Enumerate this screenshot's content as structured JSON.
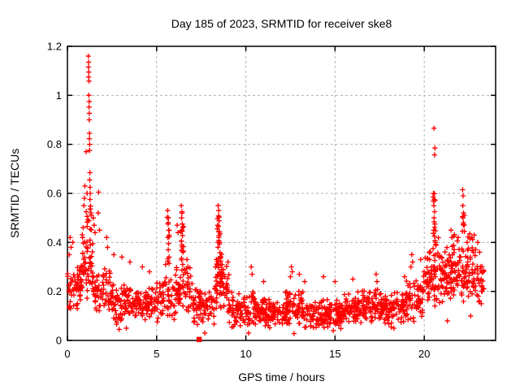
{
  "title": "Day 185 of 2023, SRMTID for receiver ske8",
  "chart_data": {
    "type": "scatter",
    "title": "Day 185 of 2023, SRMTID for receiver ske8",
    "xlabel": "GPS time / hours",
    "ylabel": "SRMTID / TECUs",
    "xlim": [
      0,
      24
    ],
    "ylim": [
      0,
      1.2
    ],
    "xticks": [
      0,
      5,
      10,
      15,
      20
    ],
    "yticks": [
      0,
      0.2,
      0.4,
      0.6,
      0.8,
      1,
      1.2
    ],
    "grid": true,
    "legend": "none",
    "marker": "plus",
    "marker_color": "#ff0000",
    "grid_color": "#b3b3b3",
    "axis_color": "#000000",
    "background_color": "#ffffff",
    "seed": 1185,
    "points": [
      [
        1.17,
        1.16
      ],
      [
        1.19,
        1.135
      ],
      [
        1.18,
        1.115
      ],
      [
        1.2,
        1.095
      ],
      [
        1.19,
        1.075
      ],
      [
        1.21,
        1.058
      ],
      [
        1.2,
        1.0
      ],
      [
        1.22,
        0.975
      ],
      [
        1.21,
        0.952
      ],
      [
        1.23,
        0.927
      ],
      [
        1.22,
        0.9
      ],
      [
        1.24,
        0.845
      ],
      [
        1.23,
        0.823
      ],
      [
        1.25,
        0.8
      ],
      [
        1.24,
        0.775
      ],
      [
        1.26,
        0.685
      ],
      [
        1.25,
        0.655
      ],
      [
        1.27,
        0.625
      ],
      [
        1.28,
        0.6
      ],
      [
        1.26,
        0.575
      ],
      [
        1.3,
        0.548
      ],
      [
        1.32,
        0.52
      ],
      [
        1.05,
        0.77
      ],
      [
        0.98,
        0.63
      ],
      [
        1.1,
        0.6
      ],
      [
        0.92,
        0.55
      ],
      [
        0.95,
        0.58
      ],
      [
        0.88,
        0.46
      ],
      [
        0.85,
        0.42
      ],
      [
        1.45,
        0.5
      ],
      [
        1.5,
        0.47
      ],
      [
        1.55,
        0.44
      ],
      [
        1.75,
        0.605
      ],
      [
        1.72,
        0.52
      ],
      [
        1.8,
        0.45
      ],
      [
        0.15,
        0.42
      ],
      [
        0.3,
        0.4
      ],
      [
        0.2,
        0.38
      ],
      [
        0.1,
        0.35
      ],
      [
        2.2,
        0.42
      ],
      [
        2.25,
        0.38
      ],
      [
        2.6,
        0.35
      ],
      [
        3.05,
        0.34
      ],
      [
        3.5,
        0.32
      ],
      [
        4.2,
        0.3
      ],
      [
        4.6,
        0.28
      ],
      [
        5.62,
        0.53
      ],
      [
        5.66,
        0.5
      ],
      [
        5.64,
        0.475
      ],
      [
        5.68,
        0.45
      ],
      [
        5.63,
        0.42
      ],
      [
        5.67,
        0.395
      ],
      [
        5.65,
        0.37
      ],
      [
        5.7,
        0.34
      ],
      [
        5.5,
        0.31
      ],
      [
        6.15,
        0.47
      ],
      [
        6.2,
        0.44
      ],
      [
        6.38,
        0.55
      ],
      [
        6.42,
        0.525
      ],
      [
        6.4,
        0.5
      ],
      [
        6.44,
        0.475
      ],
      [
        6.41,
        0.45
      ],
      [
        6.45,
        0.428
      ],
      [
        6.39,
        0.405
      ],
      [
        6.43,
        0.382
      ],
      [
        6.47,
        0.36
      ],
      [
        6.4,
        0.335
      ],
      [
        6.46,
        0.31
      ],
      [
        6.55,
        0.29
      ],
      [
        6.7,
        0.33
      ],
      [
        6.75,
        0.3
      ],
      [
        7.38,
        0.18
      ],
      [
        8.3,
        0.3
      ],
      [
        8.35,
        0.33
      ],
      [
        8.42,
        0.47
      ],
      [
        8.45,
        0.55
      ],
      [
        8.48,
        0.53
      ],
      [
        8.46,
        0.508
      ],
      [
        8.5,
        0.488
      ],
      [
        8.47,
        0.465
      ],
      [
        8.52,
        0.443
      ],
      [
        8.49,
        0.42
      ],
      [
        8.53,
        0.4
      ],
      [
        8.44,
        0.38
      ],
      [
        8.55,
        0.358
      ],
      [
        8.56,
        0.335
      ],
      [
        8.6,
        0.31
      ],
      [
        8.65,
        0.29
      ],
      [
        8.75,
        0.27
      ],
      [
        9.0,
        0.32
      ],
      [
        10.3,
        0.3
      ],
      [
        10.35,
        0.27
      ],
      [
        11.0,
        0.24
      ],
      [
        12.5,
        0.26
      ],
      [
        12.55,
        0.3
      ],
      [
        12.6,
        0.28
      ],
      [
        13.0,
        0.27
      ],
      [
        13.3,
        0.24
      ],
      [
        14.35,
        0.26
      ],
      [
        15.0,
        0.24
      ],
      [
        16.0,
        0.25
      ],
      [
        17.3,
        0.27
      ],
      [
        17.35,
        0.24
      ],
      [
        18.9,
        0.26
      ],
      [
        19.3,
        0.35
      ],
      [
        19.35,
        0.32
      ],
      [
        19.25,
        0.3
      ],
      [
        19.8,
        0.33
      ],
      [
        20.3,
        0.33
      ],
      [
        20.4,
        0.3
      ],
      [
        20.55,
        0.866
      ],
      [
        20.6,
        0.785
      ],
      [
        20.58,
        0.757
      ],
      [
        20.52,
        0.6
      ],
      [
        20.56,
        0.575
      ],
      [
        20.54,
        0.55
      ],
      [
        20.58,
        0.525
      ],
      [
        20.55,
        0.5
      ],
      [
        20.6,
        0.475
      ],
      [
        20.53,
        0.45
      ],
      [
        20.57,
        0.425
      ],
      [
        20.62,
        0.4
      ],
      [
        20.5,
        0.375
      ],
      [
        20.64,
        0.35
      ],
      [
        21.5,
        0.45
      ],
      [
        21.55,
        0.42
      ],
      [
        21.9,
        0.42
      ],
      [
        22.15,
        0.615
      ],
      [
        22.18,
        0.59
      ],
      [
        22.16,
        0.55
      ],
      [
        22.2,
        0.52
      ],
      [
        22.17,
        0.5
      ],
      [
        22.22,
        0.47
      ],
      [
        22.25,
        0.445
      ],
      [
        22.4,
        0.4
      ],
      [
        22.55,
        0.435
      ],
      [
        22.8,
        0.43
      ],
      [
        23.0,
        0.4
      ],
      [
        23.1,
        0.36
      ],
      [
        23.15,
        0.3
      ],
      [
        23.2,
        0.25
      ],
      [
        23.25,
        0.2
      ],
      [
        2.9,
        0.045
      ],
      [
        3.3,
        0.05
      ],
      [
        7.7,
        0.03
      ],
      [
        10.15,
        0.03
      ],
      [
        12.7,
        0.028
      ],
      [
        14.9,
        0.04
      ],
      [
        18.3,
        0.05
      ],
      [
        21.3,
        0.08
      ],
      [
        22.6,
        0.1
      ],
      [
        0.55,
        0.13
      ],
      [
        23.2,
        0.15
      ]
    ],
    "square_points": [
      [
        7.38,
        0.004
      ]
    ],
    "bands": [
      {
        "x0": 0.0,
        "x1": 0.8,
        "n": 60,
        "yc": 0.225,
        "a": 0.12
      },
      {
        "x0": 0.8,
        "x1": 1.45,
        "n": 50,
        "yc": 0.3,
        "a": 0.16
      },
      {
        "x0": 1.45,
        "x1": 2.4,
        "n": 60,
        "yc": 0.21,
        "a": 0.11
      },
      {
        "x0": 2.4,
        "x1": 3.2,
        "n": 55,
        "yc": 0.155,
        "a": 0.095
      },
      {
        "x0": 3.2,
        "x1": 5.0,
        "n": 115,
        "yc": 0.15,
        "a": 0.075
      },
      {
        "x0": 5.0,
        "x1": 6.1,
        "n": 65,
        "yc": 0.17,
        "a": 0.1
      },
      {
        "x0": 6.1,
        "x1": 7.05,
        "n": 60,
        "yc": 0.2,
        "a": 0.13
      },
      {
        "x0": 7.05,
        "x1": 8.25,
        "n": 75,
        "yc": 0.135,
        "a": 0.085
      },
      {
        "x0": 8.25,
        "x1": 9.05,
        "n": 55,
        "yc": 0.2,
        "a": 0.12
      },
      {
        "x0": 9.05,
        "x1": 10.6,
        "n": 100,
        "yc": 0.13,
        "a": 0.08
      },
      {
        "x0": 10.6,
        "x1": 12.2,
        "n": 105,
        "yc": 0.115,
        "a": 0.065
      },
      {
        "x0": 12.2,
        "x1": 13.2,
        "n": 70,
        "yc": 0.135,
        "a": 0.09
      },
      {
        "x0": 13.2,
        "x1": 15.4,
        "n": 145,
        "yc": 0.105,
        "a": 0.065
      },
      {
        "x0": 15.4,
        "x1": 16.2,
        "n": 55,
        "yc": 0.125,
        "a": 0.075
      },
      {
        "x0": 16.2,
        "x1": 17.6,
        "n": 95,
        "yc": 0.135,
        "a": 0.085
      },
      {
        "x0": 17.6,
        "x1": 19.0,
        "n": 90,
        "yc": 0.125,
        "a": 0.075
      },
      {
        "x0": 19.0,
        "x1": 19.95,
        "n": 62,
        "yc": 0.165,
        "a": 0.1
      },
      {
        "x0": 19.95,
        "x1": 21.05,
        "n": 70,
        "yc": 0.25,
        "a": 0.13
      },
      {
        "x0": 21.05,
        "x1": 22.05,
        "n": 65,
        "yc": 0.26,
        "a": 0.13
      },
      {
        "x0": 22.05,
        "x1": 23.05,
        "n": 62,
        "yc": 0.26,
        "a": 0.14
      },
      {
        "x0": 23.05,
        "x1": 23.35,
        "n": 18,
        "yc": 0.24,
        "a": 0.11
      }
    ],
    "columns": [
      {
        "x": 1.2,
        "w": 0.3,
        "n": 14,
        "y0": 0.33,
        "y1": 0.55
      },
      {
        "x": 5.65,
        "w": 0.12,
        "n": 8,
        "y0": 0.3,
        "y1": 0.52
      },
      {
        "x": 6.42,
        "w": 0.18,
        "n": 12,
        "y0": 0.3,
        "y1": 0.54
      },
      {
        "x": 8.5,
        "w": 0.3,
        "n": 16,
        "y0": 0.25,
        "y1": 0.52
      },
      {
        "x": 8.6,
        "w": 0.5,
        "n": 10,
        "y0": 0.22,
        "y1": 0.35
      },
      {
        "x": 20.57,
        "w": 0.18,
        "n": 12,
        "y0": 0.32,
        "y1": 0.6
      },
      {
        "x": 20.8,
        "w": 0.5,
        "n": 12,
        "y0": 0.25,
        "y1": 0.42
      },
      {
        "x": 21.6,
        "w": 0.9,
        "n": 14,
        "y0": 0.3,
        "y1": 0.45
      },
      {
        "x": 22.7,
        "w": 0.6,
        "n": 12,
        "y0": 0.28,
        "y1": 0.44
      },
      {
        "x": 22.2,
        "w": 0.15,
        "n": 6,
        "y0": 0.44,
        "y1": 0.6
      }
    ]
  }
}
